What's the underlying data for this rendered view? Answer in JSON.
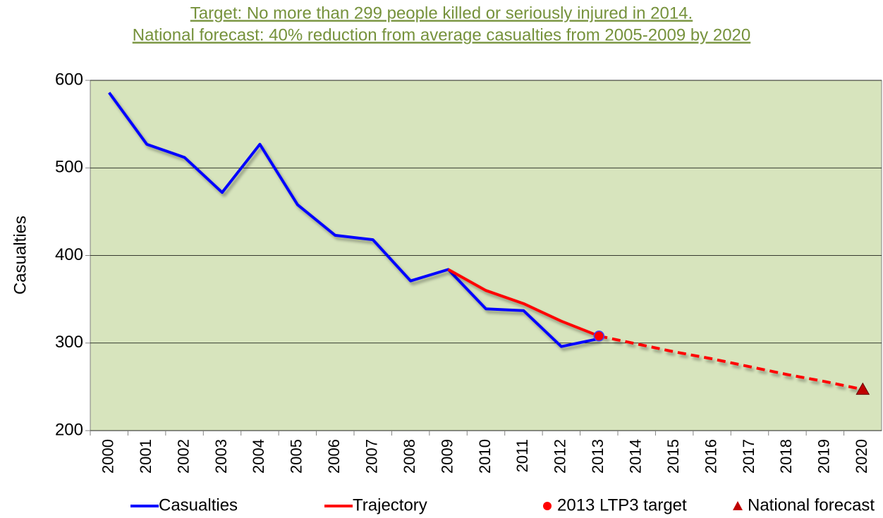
{
  "chart_data": {
    "type": "line",
    "title": [
      "Target: No more than 299 people killed or seriously injured in 2014.",
      "National forecast: 40% reduction from average casualties from 2005-2009 by 2020"
    ],
    "y_label": "Casualties",
    "categories": [
      "2000",
      "2001",
      "2002",
      "2003",
      "2004",
      "2005",
      "2006",
      "2007",
      "2008",
      "2009",
      "2010",
      "2011",
      "2012",
      "2013",
      "2014",
      "2015",
      "2016",
      "2017",
      "2018",
      "2019",
      "2020"
    ],
    "series": [
      {
        "name": "Casualties",
        "color": "#0000ff",
        "values": [
          586,
          527,
          512,
          472,
          527,
          458,
          423,
          418,
          371,
          384,
          339,
          337,
          296,
          305,
          null,
          null,
          null,
          null,
          null,
          null,
          null
        ]
      },
      {
        "name": "Trajectory",
        "color": "#ff0000",
        "dashed_from": "2013",
        "values": [
          null,
          null,
          null,
          null,
          null,
          null,
          null,
          null,
          null,
          384,
          360,
          345,
          325,
          308,
          299,
          290,
          282,
          273,
          264,
          256,
          247
        ]
      },
      {
        "name": "2013 LTP3 target",
        "color": "#ff0000",
        "marker": "circle",
        "values": [
          null,
          null,
          null,
          null,
          null,
          null,
          null,
          null,
          null,
          null,
          null,
          null,
          null,
          308,
          null,
          null,
          null,
          null,
          null,
          null,
          null
        ]
      },
      {
        "name": "National forecast",
        "color": "#c00000",
        "marker": "triangle",
        "values": [
          null,
          null,
          null,
          null,
          null,
          null,
          null,
          null,
          null,
          null,
          null,
          null,
          null,
          null,
          null,
          null,
          null,
          null,
          null,
          null,
          247
        ]
      }
    ],
    "ylim": [
      200,
      600
    ],
    "yticks": [
      200,
      300,
      400,
      500,
      600
    ],
    "grid": true,
    "plot_color": "#d7e4bd",
    "legend": "bottom"
  }
}
